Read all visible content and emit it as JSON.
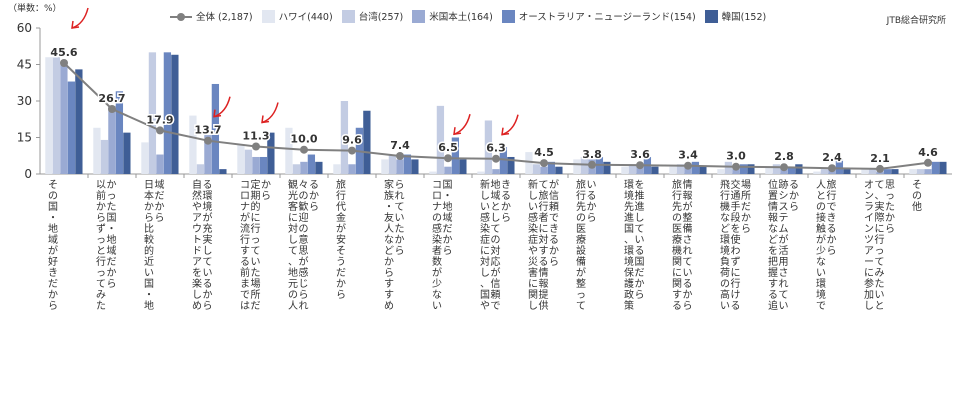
{
  "chart_data": {
    "type": "bar",
    "unit_label": "（単数：%）",
    "source": "JTB総合研究所",
    "ylim": [
      0,
      60
    ],
    "yticks": [
      "0",
      "15",
      "30",
      "45",
      "60"
    ],
    "grid": false,
    "legend_position": "top",
    "categories": [
      "その国・地域が好きだから",
      "以前からずっと行ってみたかった国・地域だから",
      "日本から比較的近い国・地域だから",
      "自然やアウトドアを楽しめる環境が充実しているから",
      "コロナが流行する前までは定期的に行っていた場所だから",
      "観光客に対して、地元の人々の歓迎の意思が感じられるから",
      "旅行代金が安そうだから",
      "家族・友人などからすすめられていたから",
      "コロナの感染者数が少ない国・地域だから",
      "新しい感染症に対し、国や地域としての対応が信頼できるから",
      "新しい感染症や災害に関して旅行者に対する情報提供が信頼できるから",
      "旅行先の医療設備が整っているから",
      "環境先進国、環境保護政策を推進している国だから",
      "旅行先の医療機関に関する情報が整備されているから",
      "飛行機など環境負荷の高い交通手段を使わずに行ける場所だから",
      "位置情報などを把握する追跡システムが活用されているから",
      "人との接触が少ない環境で旅行できるから",
      "オンラインツアーに参加して、実際に行ってみたいと思ったから",
      "その他"
    ],
    "total_labels": [
      "45.6",
      "26.7",
      "17.9",
      "13.7",
      "11.3",
      "10.0",
      "9.6",
      "7.4",
      "6.5",
      "6.3",
      "4.5",
      "3.8",
      "3.6",
      "3.4",
      "3.0",
      "2.8",
      "2.4",
      "2.1",
      "4.6"
    ],
    "series": [
      {
        "name": "全体 (2,187)",
        "kind": "line",
        "color": "#808080",
        "values": [
          45.6,
          26.7,
          17.9,
          13.7,
          11.3,
          10.0,
          9.6,
          7.4,
          6.5,
          6.3,
          4.5,
          3.8,
          3.6,
          3.4,
          3.0,
          2.8,
          2.4,
          2.1,
          4.6
        ]
      },
      {
        "name": "ハワイ(440)",
        "kind": "bar",
        "color": "#e2e7f1",
        "values": [
          48,
          19,
          13,
          24,
          12,
          19,
          4,
          6,
          1,
          1,
          9,
          6,
          3,
          3,
          2,
          3,
          1,
          2,
          2
        ]
      },
      {
        "name": "台湾(257)",
        "kind": "bar",
        "color": "#c3cce3",
        "values": [
          48,
          14,
          50,
          4,
          10,
          4,
          30,
          8,
          28,
          22,
          4,
          7,
          4,
          4,
          5,
          4,
          2,
          2,
          2
        ]
      },
      {
        "name": "米国本土(164)",
        "kind": "bar",
        "color": "#9aaad3",
        "values": [
          45,
          28,
          8,
          16,
          7,
          5,
          4,
          6,
          3,
          2,
          3,
          6,
          3,
          4,
          2,
          3,
          2,
          1,
          2
        ]
      },
      {
        "name": "オーストラリア・ニュージーランド(154)",
        "kind": "bar",
        "color": "#6a86c0",
        "values": [
          38,
          34,
          50,
          37,
          7,
          8,
          19,
          8,
          15,
          11,
          5,
          7,
          7,
          5,
          4,
          3,
          6,
          2,
          5
        ]
      },
      {
        "name": "韓国(152)",
        "kind": "bar",
        "color": "#3f5e96",
        "values": [
          43,
          17,
          49,
          2,
          17,
          5,
          26,
          6,
          6,
          7,
          3,
          5,
          3,
          3,
          4,
          4,
          2,
          2,
          5
        ]
      }
    ]
  }
}
